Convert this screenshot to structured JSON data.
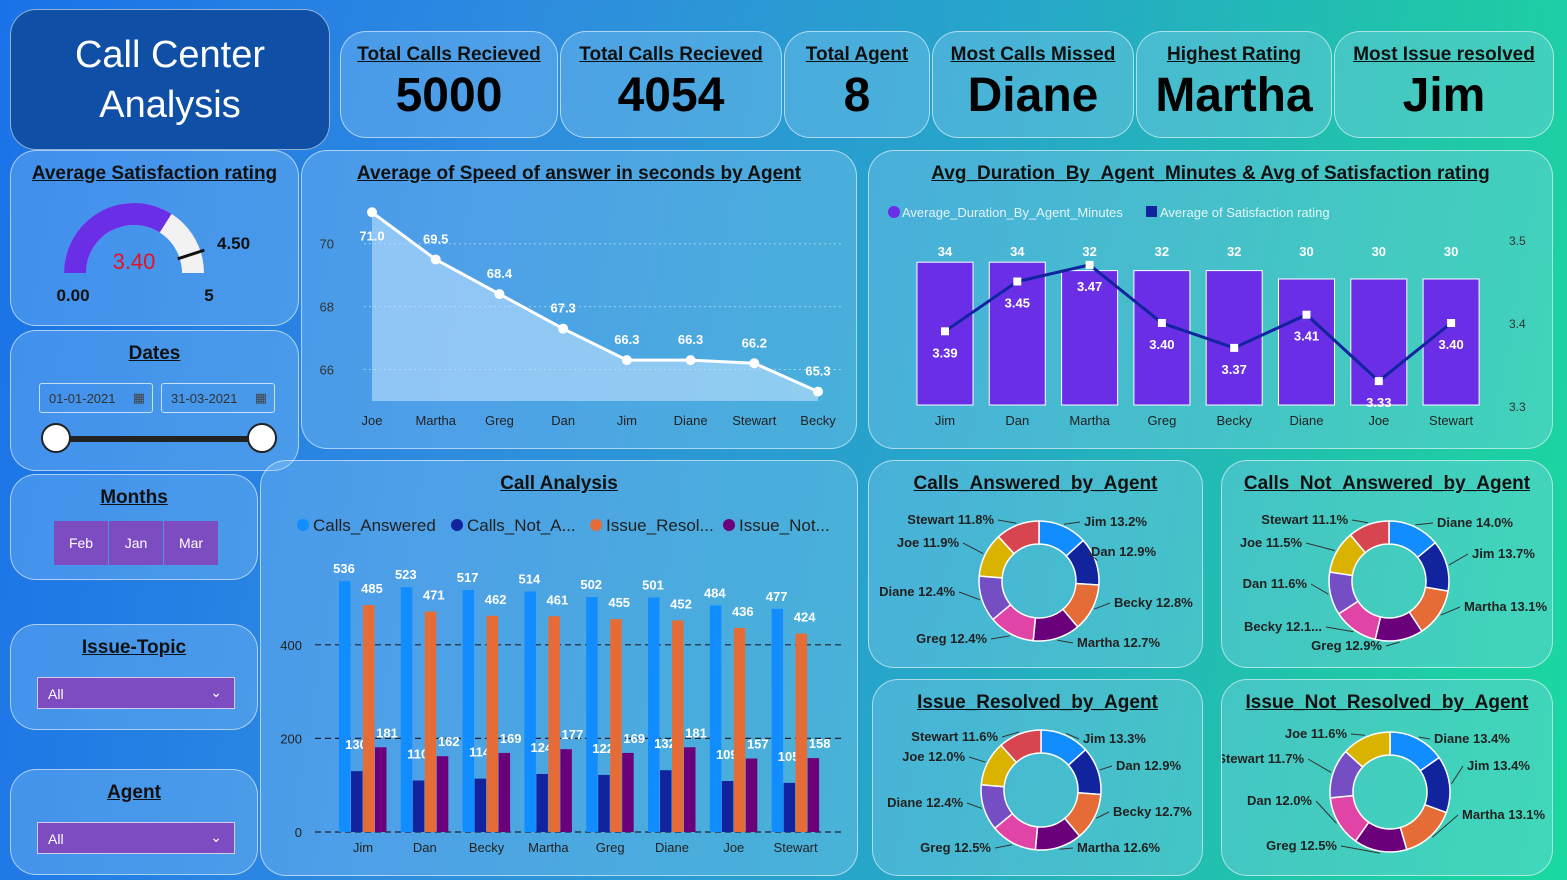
{
  "title": {
    "line1": "Call Center",
    "line2": "Analysis"
  },
  "kpis": [
    {
      "label": "Total Calls Recieved",
      "value": "5000"
    },
    {
      "label": "Total Calls Recieved",
      "value": "4054"
    },
    {
      "label": "Total Agent",
      "value": "8"
    },
    {
      "label": "Most Calls Missed",
      "value": "Diane"
    },
    {
      "label": "Highest Rating",
      "value": "Martha"
    },
    {
      "label": "Most Issue resolved",
      "value": "Jim"
    }
  ],
  "gauge": {
    "title": "Average Satisfaction rating",
    "value": "3.40",
    "target": "4.50",
    "min": "0.00",
    "max": "5",
    "value_num": 3.4,
    "min_num": 0,
    "max_num": 5,
    "target_num": 4.5
  },
  "dates": {
    "title": "Dates",
    "start": "01-01-2021",
    "end": "31-03-2021"
  },
  "months": {
    "title": "Months",
    "items": [
      "Feb",
      "Jan",
      "Mar"
    ]
  },
  "issue_topic": {
    "title": "Issue-Topic",
    "value": "All"
  },
  "agent_filter": {
    "title": "Agent",
    "value": "All"
  },
  "colors": {
    "accent": "#6a2ee6",
    "answered": "#118dff",
    "not_answered": "#12239e",
    "resolved": "#e66c37",
    "not_resolved": "#6b007b",
    "gauge_value": "#e81123"
  },
  "chart_data": [
    {
      "type": "area",
      "title": "Average of Speed of answer in seconds by Agent",
      "categories": [
        "Joe",
        "Martha",
        "Greg",
        "Dan",
        "Jim",
        "Diane",
        "Stewart",
        "Becky"
      ],
      "values": [
        71.0,
        69.5,
        68.4,
        67.3,
        66.3,
        66.3,
        66.2,
        65.3
      ],
      "labels": [
        "71.0",
        "69.5",
        "68.4",
        "67.3",
        "66.3",
        "66.3",
        "66.2",
        "65.3"
      ],
      "yticks": [
        "70",
        "68",
        "66"
      ],
      "ylim": [
        65,
        71.2
      ]
    },
    {
      "type": "bar",
      "title": "Avg_Duration_By_Agent_Minutes & Avg of Satisfaction rating",
      "legend": [
        "Average_Duration_By_Agent_Minutes",
        "Average of Satisfaction rating"
      ],
      "categories": [
        "Jim",
        "Dan",
        "Martha",
        "Greg",
        "Becky",
        "Diane",
        "Joe",
        "Stewart"
      ],
      "series": [
        {
          "name": "Average_Duration_By_Agent_Minutes",
          "values": [
            34,
            34,
            32,
            32,
            32,
            30,
            30,
            30
          ],
          "labels": [
            "34",
            "34",
            "32",
            "32",
            "32",
            "30",
            "30",
            "30"
          ]
        },
        {
          "name": "Average of Satisfaction rating",
          "values": [
            3.39,
            3.45,
            3.47,
            3.4,
            3.37,
            3.41,
            3.33,
            3.4
          ],
          "labels": [
            "3.39",
            "3.45",
            "3.47",
            "3.40",
            "3.37",
            "3.41",
            "3.33",
            "3.40"
          ]
        }
      ],
      "y2ticks": [
        "3.5",
        "3.4",
        "3.3"
      ],
      "y2lim": [
        3.3,
        3.5
      ]
    },
    {
      "type": "bar",
      "title": "Call Analysis",
      "legend": [
        "Calls_Answered",
        "Calls_Not_A...",
        "Issue_Resol...",
        "Issue_Not..."
      ],
      "categories": [
        "Jim",
        "Dan",
        "Becky",
        "Martha",
        "Greg",
        "Diane",
        "Joe",
        "Stewart"
      ],
      "series": [
        {
          "name": "Calls_Answered",
          "values": [
            536,
            523,
            517,
            514,
            502,
            501,
            484,
            477
          ]
        },
        {
          "name": "Calls_Not_A...",
          "values": [
            130,
            110,
            114,
            124,
            122,
            132,
            109,
            105
          ]
        },
        {
          "name": "Issue_Resol...",
          "values": [
            485,
            471,
            462,
            461,
            455,
            452,
            436,
            424
          ]
        },
        {
          "name": "Issue_Not...",
          "values": [
            181,
            162,
            169,
            177,
            169,
            181,
            157,
            158
          ]
        }
      ],
      "yticks": [
        "400",
        "200",
        "0"
      ],
      "ylim": [
        0,
        560
      ]
    },
    {
      "type": "pie",
      "title": "Calls_Answered_by_Agent",
      "slices": [
        {
          "label": "Jim 13.2%",
          "value": 13.2
        },
        {
          "label": "Dan 12.9%",
          "value": 12.9
        },
        {
          "label": "Becky 12.8%",
          "value": 12.8
        },
        {
          "label": "Martha 12.7%",
          "value": 12.7
        },
        {
          "label": "Greg 12.4%",
          "value": 12.4
        },
        {
          "label": "Diane 12.4%",
          "value": 12.4
        },
        {
          "label": "Joe 11.9%",
          "value": 11.9
        },
        {
          "label": "Stewart 11.8%",
          "value": 11.8
        }
      ]
    },
    {
      "type": "pie",
      "title": "Calls_Not_Answered_by_Agent",
      "slices": [
        {
          "label": "Diane 14.0%",
          "value": 14.0
        },
        {
          "label": "Jim 13.7%",
          "value": 13.7
        },
        {
          "label": "Martha 13.1%",
          "value": 13.1
        },
        {
          "label": "Greg 12.9%",
          "value": 12.9
        },
        {
          "label": "Becky 12.1...",
          "value": 12.1
        },
        {
          "label": "Dan 11.6%",
          "value": 11.6
        },
        {
          "label": "Joe 11.5%",
          "value": 11.5
        },
        {
          "label": "Stewart 11.1%",
          "value": 11.1
        }
      ]
    },
    {
      "type": "pie",
      "title": "Issue_Resolved_by_Agent",
      "slices": [
        {
          "label": "Jim 13.3%",
          "value": 13.3
        },
        {
          "label": "Dan 12.9%",
          "value": 12.9
        },
        {
          "label": "Becky 12.7%",
          "value": 12.7
        },
        {
          "label": "Martha 12.6%",
          "value": 12.6
        },
        {
          "label": "Greg 12.5%",
          "value": 12.5
        },
        {
          "label": "Diane 12.4%",
          "value": 12.4
        },
        {
          "label": "Joe 12.0%",
          "value": 12.0
        },
        {
          "label": "Stewart 11.6%",
          "value": 11.6
        }
      ]
    },
    {
      "type": "pie",
      "title": "Issue_Not_Resolved_by_Agent",
      "slices": [
        {
          "label": "Diane 13.4%",
          "value": 13.4
        },
        {
          "label": "Jim 13.4%",
          "value": 13.4
        },
        {
          "label": "Martha 13.1%",
          "value": 13.1
        },
        {
          "label": "Greg 12.5%",
          "value": 12.5
        },
        {
          "label": "Dan 12.0%",
          "value": 12.0
        },
        {
          "label": "Stewart 11.7%",
          "value": 11.7
        },
        {
          "label": "Joe 11.6%",
          "value": 11.6
        }
      ]
    }
  ]
}
